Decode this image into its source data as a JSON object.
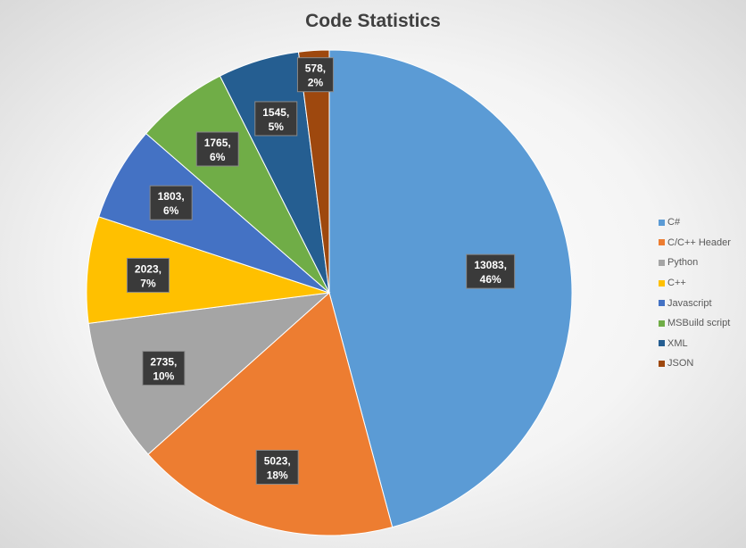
{
  "chart_data": {
    "type": "pie",
    "title": "Code Statistics",
    "categories": [
      "C#",
      "C/C++ Header",
      "Python",
      "C++",
      "Javascript",
      "MSBuild script",
      "XML",
      "JSON"
    ],
    "values": [
      13083,
      5023,
      2735,
      2023,
      1803,
      1765,
      1545,
      578
    ],
    "percent_labels": [
      "46%",
      "18%",
      "10%",
      "7%",
      "6%",
      "6%",
      "5%",
      "2%"
    ],
    "colors": [
      "#5b9bd5",
      "#ed7d31",
      "#a5a5a5",
      "#ffc000",
      "#4472c4",
      "#70ad47",
      "#255e91",
      "#9e480e"
    ],
    "legend_position": "right",
    "start_angle_deg": 0,
    "direction": "clockwise"
  }
}
